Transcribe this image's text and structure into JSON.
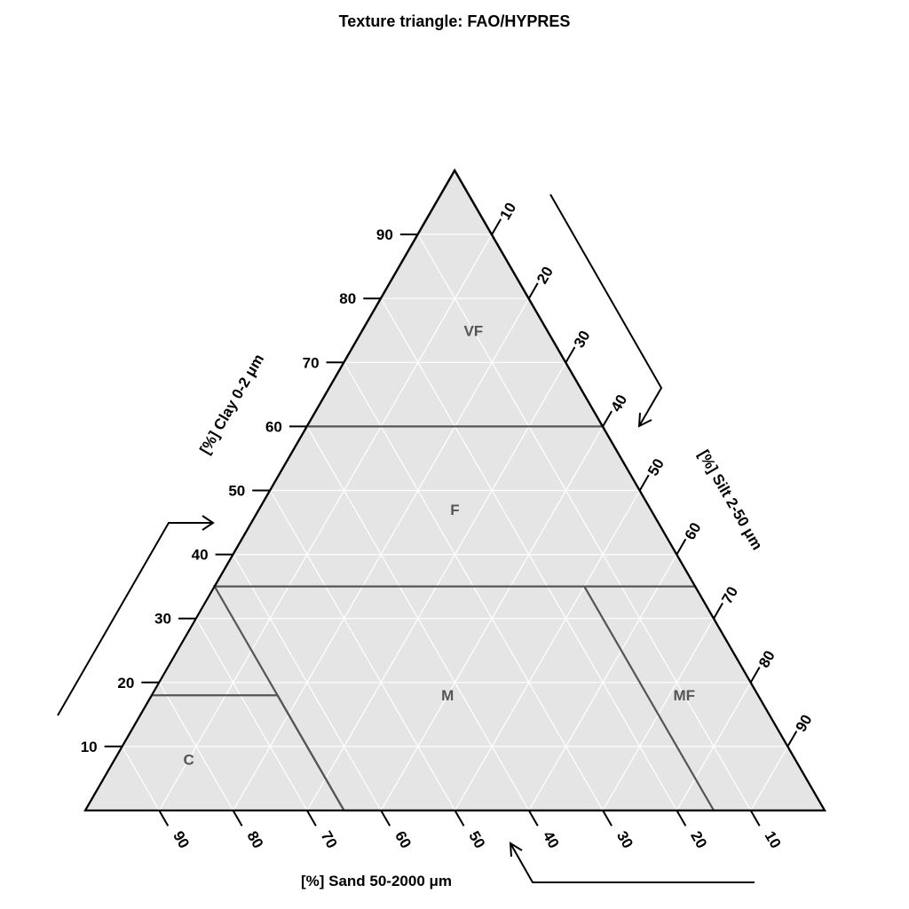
{
  "chart_data": {
    "type": "ternary",
    "title": "Texture triangle: FAO/HYPRES",
    "axes": {
      "clay": {
        "label": "[%] Clay 0-2 μm",
        "ticks": [
          10,
          20,
          30,
          40,
          50,
          60,
          70,
          80,
          90
        ]
      },
      "silt": {
        "label": "[%] Silt 2-50 μm",
        "ticks": [
          10,
          20,
          30,
          40,
          50,
          60,
          70,
          80,
          90
        ]
      },
      "sand": {
        "label": "[%] Sand 50-2000 μm",
        "ticks": [
          90,
          80,
          70,
          60,
          50,
          40,
          30,
          20,
          10
        ]
      }
    },
    "grid": true,
    "classes": [
      {
        "label": "VF",
        "points": [
          [
            60,
            0,
            40
          ],
          [
            100,
            0,
            0
          ],
          [
            60,
            40,
            0
          ]
        ],
        "label_pos": [
          75,
          15,
          10
        ]
      },
      {
        "label": "F",
        "points": [
          [
            35,
            0,
            65
          ],
          [
            60,
            0,
            40
          ],
          [
            60,
            40,
            0
          ],
          [
            35,
            65,
            0
          ]
        ],
        "label_pos": [
          47,
          26.5,
          26.5
        ]
      },
      {
        "label": "M",
        "points": [
          [
            18,
            17,
            65
          ],
          [
            35,
            0,
            65
          ],
          [
            35,
            50,
            15
          ],
          [
            0,
            85,
            15
          ],
          [
            0,
            35,
            65
          ],
          [
            18,
            17,
            65
          ]
        ],
        "label_pos": [
          18,
          40,
          42
        ]
      },
      {
        "label": "C",
        "points": [
          [
            0,
            0,
            100
          ],
          [
            18,
            0,
            82
          ],
          [
            18,
            17,
            65
          ],
          [
            0,
            35,
            65
          ]
        ],
        "label_pos": [
          8,
          10,
          82
        ]
      },
      {
        "label": "MF",
        "points": [
          [
            35,
            50,
            15
          ],
          [
            35,
            65,
            0
          ],
          [
            0,
            100,
            0
          ],
          [
            0,
            85,
            15
          ]
        ],
        "label_pos": [
          18,
          72,
          10
        ]
      }
    ],
    "class_label_color": "#555555",
    "boundary_color": "#555555",
    "fill_color": "#e5e5e5",
    "grid_color": "#ffffff",
    "axis_color": "#000000"
  }
}
